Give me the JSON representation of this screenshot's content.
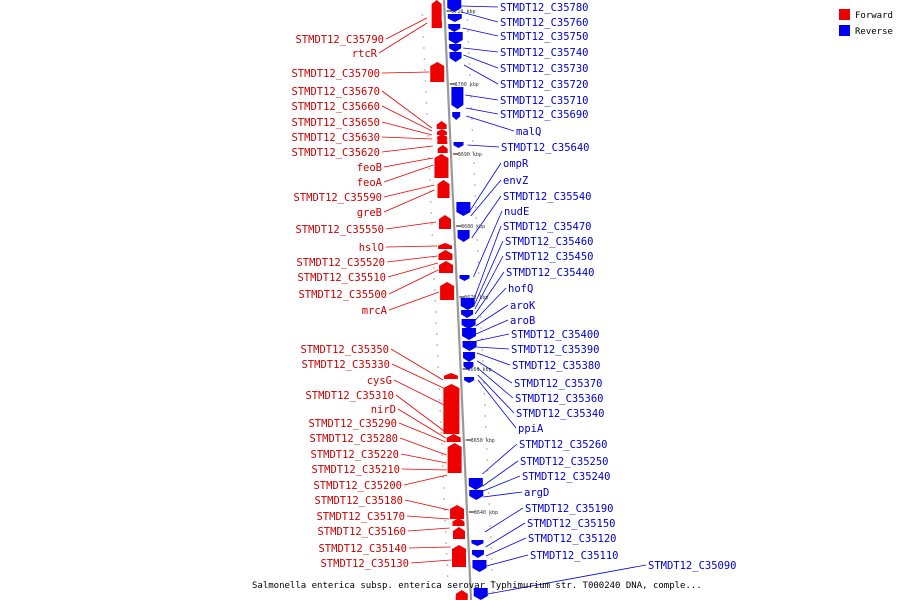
{
  "caption": "Salmonella enterica subsp. enterica serovar Typhimurium str. T000240 DNA, comple...",
  "colors": {
    "forward": "#ee0000",
    "reverse": "#0000ee",
    "axis": "#999999"
  },
  "legend": {
    "forward_label": "Forward",
    "reverse_label": "Reverse"
  },
  "ticks": [
    "3710 kbp",
    "3700 kbp",
    "3690 kbp",
    "3680 kbp",
    "3670 kbp",
    "3660 kbp",
    "3650 kbp",
    "3640 kbp"
  ],
  "forward_labels": [
    "STMDT12_C35790",
    "rtcR",
    "STMDT12_C35700",
    "STMDT12_C35670",
    "STMDT12_C35660",
    "STMDT12_C35650",
    "STMDT12_C35630",
    "STMDT12_C35620",
    "feoB",
    "feoA",
    "STMDT12_C35590",
    "greB",
    "STMDT12_C35550",
    "hslO",
    "STMDT12_C35520",
    "STMDT12_C35510",
    "STMDT12_C35500",
    "mrcA",
    "STMDT12_C35350",
    "STMDT12_C35330",
    "cysG",
    "STMDT12_C35310",
    "nirD",
    "STMDT12_C35290",
    "STMDT12_C35280",
    "STMDT12_C35220",
    "STMDT12_C35210",
    "STMDT12_C35200",
    "STMDT12_C35180",
    "STMDT12_C35170",
    "STMDT12_C35160",
    "STMDT12_C35140",
    "STMDT12_C35130"
  ],
  "reverse_labels": [
    "STMDT12_C35780",
    "STMDT12_C35760",
    "STMDT12_C35750",
    "STMDT12_C35740",
    "STMDT12_C35730",
    "STMDT12_C35720",
    "STMDT12_C35710",
    "STMDT12_C35690",
    "malQ",
    "STMDT12_C35640",
    "ompR",
    "envZ",
    "STMDT12_C35540",
    "nudE",
    "STMDT12_C35470",
    "STMDT12_C35460",
    "STMDT12_C35450",
    "STMDT12_C35440",
    "hofQ",
    "aroK",
    "aroB",
    "STMDT12_C35400",
    "STMDT12_C35390",
    "STMDT12_C35380",
    "STMDT12_C35370",
    "STMDT12_C35360",
    "STMDT12_C35340",
    "ppiA",
    "STMDT12_C35260",
    "STMDT12_C35250",
    "STMDT12_C35240",
    "argD",
    "STMDT12_C35190",
    "STMDT12_C35150",
    "STMDT12_C35120",
    "STMDT12_C35110",
    "STMDT12_C35090"
  ]
}
